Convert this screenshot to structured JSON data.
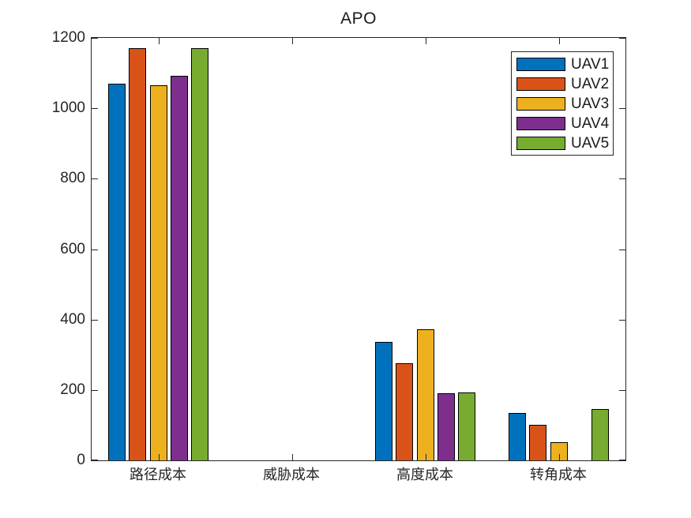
{
  "chart_data": {
    "type": "bar",
    "title": "APO",
    "categories": [
      "路径成本",
      "威胁成本",
      "高度成本",
      "转角成本"
    ],
    "series": [
      {
        "name": "UAV1",
        "color": "#0072BD",
        "values": [
          1070,
          0,
          337,
          134
        ]
      },
      {
        "name": "UAV2",
        "color": "#D95319",
        "values": [
          1171,
          0,
          276,
          102
        ]
      },
      {
        "name": "UAV3",
        "color": "#EDB120",
        "values": [
          1066,
          0,
          372,
          52
        ]
      },
      {
        "name": "UAV4",
        "color": "#7E2F8E",
        "values": [
          1093,
          0,
          190,
          0
        ]
      },
      {
        "name": "UAV5",
        "color": "#77AC30",
        "values": [
          1170,
          0,
          192,
          146
        ]
      }
    ],
    "ylim": [
      0,
      1200
    ],
    "yticks": [
      0,
      200,
      400,
      600,
      800,
      1000,
      1200
    ],
    "yticklabels": [
      "0",
      "200",
      "400",
      "600",
      "800",
      "1000",
      "1200"
    ],
    "xlabel": "",
    "ylabel": "",
    "grid": false,
    "legend_position": "northeast",
    "axis_color": "#262626",
    "bar_edge_color": "#000000"
  }
}
